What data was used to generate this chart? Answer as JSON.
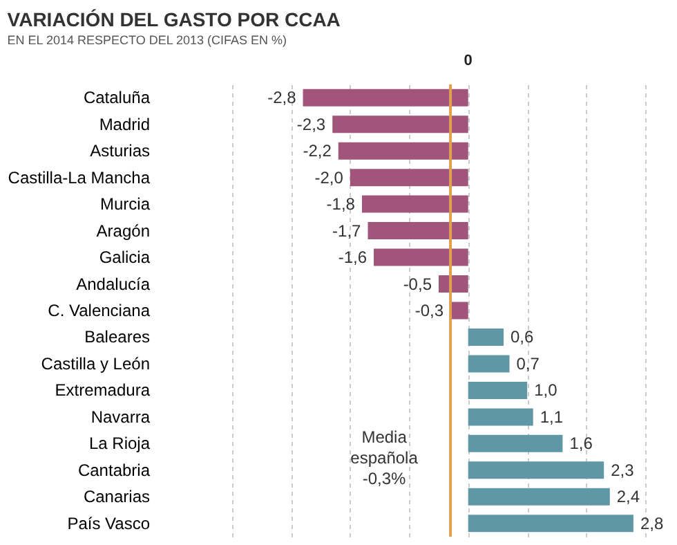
{
  "chart_data": {
    "type": "bar",
    "orientation": "horizontal",
    "title": "VARIACIÓN DEL GASTO POR CCAA",
    "subtitle": "EN EL 2014 RESPECTO DEL 2013 (CIFAS EN %)",
    "categories": [
      "Cataluña",
      "Madrid",
      "Asturias",
      "Castilla-La Mancha",
      "Murcia",
      "Aragón",
      "Galicia",
      "Andalucía",
      "C. Valenciana",
      "Baleares",
      "Castilla y León",
      "Extremadura",
      "Navarra",
      "La Rioja",
      "Cantabria",
      "Canarias",
      "País Vasco"
    ],
    "values": [
      -2.8,
      -2.3,
      -2.2,
      -2.0,
      -1.8,
      -1.7,
      -1.6,
      -0.5,
      -0.3,
      0.6,
      0.7,
      1.0,
      1.1,
      1.6,
      2.3,
      2.4,
      2.8
    ],
    "value_labels": [
      "-2,8",
      "-2,3",
      "-2,2",
      "-2,0",
      "-1,8",
      "-1,7",
      "-1,6",
      "-0,5",
      "-0,3",
      "0,6",
      "0,7",
      "1,0",
      "1,1",
      "1,6",
      "2,3",
      "2,4",
      "2,8"
    ],
    "colors": [
      "#a1557b",
      "#a1557b",
      "#a1557b",
      "#a1557b",
      "#a1557b",
      "#a1557b",
      "#a1557b",
      "#a1557b",
      "#a1557b",
      "#5f97a6",
      "#5f97a6",
      "#5f97a6",
      "#5f97a6",
      "#5f97a6",
      "#5f97a6",
      "#5f97a6",
      "#5f97a6"
    ],
    "xlim": [
      -4,
      3
    ],
    "xticks": [
      {
        "value": -4,
        "label": null
      },
      {
        "value": -3,
        "label": null
      },
      {
        "value": -2,
        "label": null
      },
      {
        "value": -1,
        "label": null
      },
      {
        "value": 0,
        "label": null
      },
      {
        "value": 1,
        "label": null
      },
      {
        "value": 2,
        "label": null
      },
      {
        "value": 3,
        "label": null
      }
    ],
    "annotations": [
      "0"
    ],
    "grid": "x",
    "ref_lines": [
      {
        "axis": "x",
        "value": -0.3,
        "label": "Media española -0,3%",
        "color": "#e0a050"
      }
    ]
  }
}
